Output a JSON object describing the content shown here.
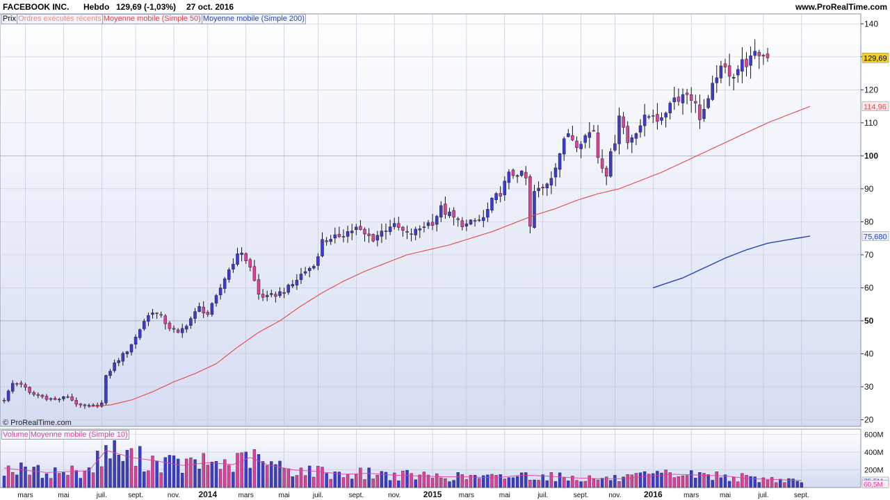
{
  "header": {
    "title": "FACEBOOK INC.",
    "period": "Hebdo",
    "last": "129,69 (-1,03%)",
    "date": "27 oct. 2016",
    "site": "www.ProRealTime.com"
  },
  "legend": [
    {
      "label": "Prix",
      "color": "#000000"
    },
    {
      "label": "Ordres exécutés récents",
      "color": "#f08a8a"
    },
    {
      "label": "Moyenne mobile (Simple 50)",
      "color": "#e0404a"
    },
    {
      "label": "Moyenne mobile (Simple 200)",
      "color": "#2244bb"
    }
  ],
  "volume_legend": [
    {
      "label": "Volume",
      "color": "#e0409a"
    },
    {
      "label": "Moyenne mobile (Simple 10)",
      "color": "#e0409a"
    }
  ],
  "credit": "© ProRealTime.com",
  "colors": {
    "up": "#3b3bd4",
    "down": "#e0409a",
    "ma50": "#e64545",
    "ma200": "#2244bb",
    "vol_ma": "#e0409a"
  },
  "chart_data": {
    "type": "candlestick",
    "price_axis": {
      "range": [
        18,
        143
      ],
      "ticks": [
        20,
        30,
        40,
        50,
        60,
        70,
        80,
        90,
        100,
        110,
        120,
        130,
        140
      ],
      "bold_ticks": [
        50,
        100
      ]
    },
    "volume_axis": {
      "range": [
        0,
        660
      ],
      "ticks": [
        {
          "v": 200,
          "label": "200M"
        },
        {
          "v": 400,
          "label": "400M"
        },
        {
          "v": 600,
          "label": "600M"
        }
      ]
    },
    "x_labels": [
      {
        "i": 5,
        "label": "mars",
        "bold": false
      },
      {
        "i": 14,
        "label": "mai",
        "bold": false
      },
      {
        "i": 23,
        "label": "juil.",
        "bold": false
      },
      {
        "i": 31,
        "label": "sept.",
        "bold": false
      },
      {
        "i": 40,
        "label": "nov.",
        "bold": false
      },
      {
        "i": 48,
        "label": "2014",
        "bold": true
      },
      {
        "i": 57,
        "label": "mars",
        "bold": false
      },
      {
        "i": 66,
        "label": "mai",
        "bold": false
      },
      {
        "i": 74,
        "label": "juil.",
        "bold": false
      },
      {
        "i": 83,
        "label": "sept.",
        "bold": false
      },
      {
        "i": 92,
        "label": "nov.",
        "bold": false
      },
      {
        "i": 101,
        "label": "2015",
        "bold": true
      },
      {
        "i": 109,
        "label": "mars",
        "bold": false
      },
      {
        "i": 118,
        "label": "mai",
        "bold": false
      },
      {
        "i": 127,
        "label": "juil.",
        "bold": false
      },
      {
        "i": 136,
        "label": "sept.",
        "bold": false
      },
      {
        "i": 144,
        "label": "nov.",
        "bold": false
      },
      {
        "i": 153,
        "label": "2016",
        "bold": true
      },
      {
        "i": 162,
        "label": "mars",
        "bold": false
      },
      {
        "i": 170,
        "label": "mai",
        "bold": false
      },
      {
        "i": 179,
        "label": "juil.",
        "bold": false
      },
      {
        "i": 188,
        "label": "sept.",
        "bold": false
      }
    ],
    "price_anchors": [
      [
        0,
        26
      ],
      [
        2,
        31
      ],
      [
        4,
        31
      ],
      [
        6,
        28
      ],
      [
        9,
        27
      ],
      [
        12,
        26
      ],
      [
        15,
        27
      ],
      [
        18,
        24
      ],
      [
        21,
        24
      ],
      [
        23,
        25
      ],
      [
        24,
        33
      ],
      [
        26,
        37
      ],
      [
        29,
        41
      ],
      [
        31,
        45
      ],
      [
        33,
        50
      ],
      [
        35,
        53
      ],
      [
        37,
        51
      ],
      [
        39,
        48
      ],
      [
        41,
        46
      ],
      [
        43,
        49
      ],
      [
        46,
        54
      ],
      [
        48,
        52
      ],
      [
        50,
        57
      ],
      [
        52,
        63
      ],
      [
        54,
        68
      ],
      [
        56,
        71
      ],
      [
        58,
        66
      ],
      [
        60,
        58
      ],
      [
        62,
        57
      ],
      [
        64,
        58
      ],
      [
        66,
        59
      ],
      [
        68,
        61
      ],
      [
        70,
        64
      ],
      [
        72,
        66
      ],
      [
        74,
        69
      ],
      [
        75,
        75
      ],
      [
        77,
        74
      ],
      [
        79,
        76
      ],
      [
        81,
        77
      ],
      [
        83,
        78
      ],
      [
        85,
        76
      ],
      [
        87,
        75
      ],
      [
        89,
        77
      ],
      [
        91,
        79
      ],
      [
        93,
        78
      ],
      [
        95,
        76
      ],
      [
        97,
        77
      ],
      [
        99,
        79
      ],
      [
        101,
        80
      ],
      [
        103,
        84
      ],
      [
        105,
        82
      ],
      [
        107,
        80
      ],
      [
        109,
        79
      ],
      [
        111,
        80
      ],
      [
        113,
        81
      ],
      [
        115,
        86
      ],
      [
        117,
        89
      ],
      [
        119,
        94
      ],
      [
        121,
        95
      ],
      [
        123,
        93
      ],
      [
        124,
        78
      ],
      [
        125,
        89
      ],
      [
        127,
        90
      ],
      [
        129,
        94
      ],
      [
        131,
        101
      ],
      [
        133,
        107
      ],
      [
        135,
        104
      ],
      [
        137,
        106
      ],
      [
        139,
        108
      ],
      [
        140,
        100
      ],
      [
        142,
        95
      ],
      [
        144,
        105
      ],
      [
        145,
        113
      ],
      [
        147,
        104
      ],
      [
        149,
        108
      ],
      [
        151,
        111
      ],
      [
        153,
        113
      ],
      [
        155,
        110
      ],
      [
        157,
        117
      ],
      [
        159,
        118
      ],
      [
        161,
        119
      ],
      [
        162,
        118
      ],
      [
        164,
        112
      ],
      [
        166,
        116
      ],
      [
        168,
        125
      ],
      [
        170,
        126
      ],
      [
        172,
        125
      ],
      [
        174,
        128
      ],
      [
        176,
        129
      ],
      [
        178,
        131
      ],
      [
        180,
        129.69
      ]
    ],
    "ma50": {
      "last_label": "114,96",
      "anchors": [
        [
          20,
          24
        ],
        [
          25,
          24.5
        ],
        [
          30,
          26
        ],
        [
          35,
          28.5
        ],
        [
          40,
          31.5
        ],
        [
          45,
          34
        ],
        [
          50,
          37
        ],
        [
          55,
          42
        ],
        [
          60,
          46.5
        ],
        [
          65,
          50
        ],
        [
          70,
          54.5
        ],
        [
          75,
          58.5
        ],
        [
          80,
          62
        ],
        [
          85,
          65
        ],
        [
          90,
          67.5
        ],
        [
          95,
          70
        ],
        [
          100,
          71.5
        ],
        [
          105,
          73
        ],
        [
          110,
          75
        ],
        [
          115,
          77
        ],
        [
          120,
          79.5
        ],
        [
          125,
          82
        ],
        [
          130,
          84
        ],
        [
          135,
          86.5
        ],
        [
          140,
          88.5
        ],
        [
          145,
          90
        ],
        [
          150,
          92.5
        ],
        [
          155,
          95
        ],
        [
          160,
          98
        ],
        [
          165,
          101
        ],
        [
          170,
          104
        ],
        [
          175,
          107
        ],
        [
          180,
          110
        ],
        [
          185,
          112.5
        ],
        [
          190,
          114.96
        ]
      ]
    },
    "ma200": {
      "last_label": "75,680",
      "anchors": [
        [
          153,
          60
        ],
        [
          160,
          63
        ],
        [
          165,
          66
        ],
        [
          170,
          69
        ],
        [
          175,
          71.5
        ],
        [
          180,
          73.5
        ],
        [
          190,
          75.68
        ]
      ]
    },
    "volume_anchors": [
      [
        0,
        220
      ],
      [
        10,
        170
      ],
      [
        20,
        190
      ],
      [
        24,
        420
      ],
      [
        30,
        340
      ],
      [
        36,
        300
      ],
      [
        42,
        250
      ],
      [
        48,
        280
      ],
      [
        54,
        260
      ],
      [
        58,
        340
      ],
      [
        62,
        260
      ],
      [
        68,
        200
      ],
      [
        74,
        180
      ],
      [
        80,
        150
      ],
      [
        86,
        160
      ],
      [
        92,
        140
      ],
      [
        98,
        130
      ],
      [
        104,
        120
      ],
      [
        110,
        120
      ],
      [
        116,
        110
      ],
      [
        122,
        140
      ],
      [
        128,
        130
      ],
      [
        134,
        110
      ],
      [
        140,
        100
      ],
      [
        146,
        100
      ],
      [
        152,
        130
      ],
      [
        158,
        150
      ],
      [
        164,
        140
      ],
      [
        170,
        130
      ],
      [
        176,
        100
      ],
      [
        182,
        90
      ],
      [
        190,
        75
      ]
    ],
    "last_price_label": "129,69",
    "last_volume_labels": [
      "75,5M",
      "60,5M"
    ]
  }
}
